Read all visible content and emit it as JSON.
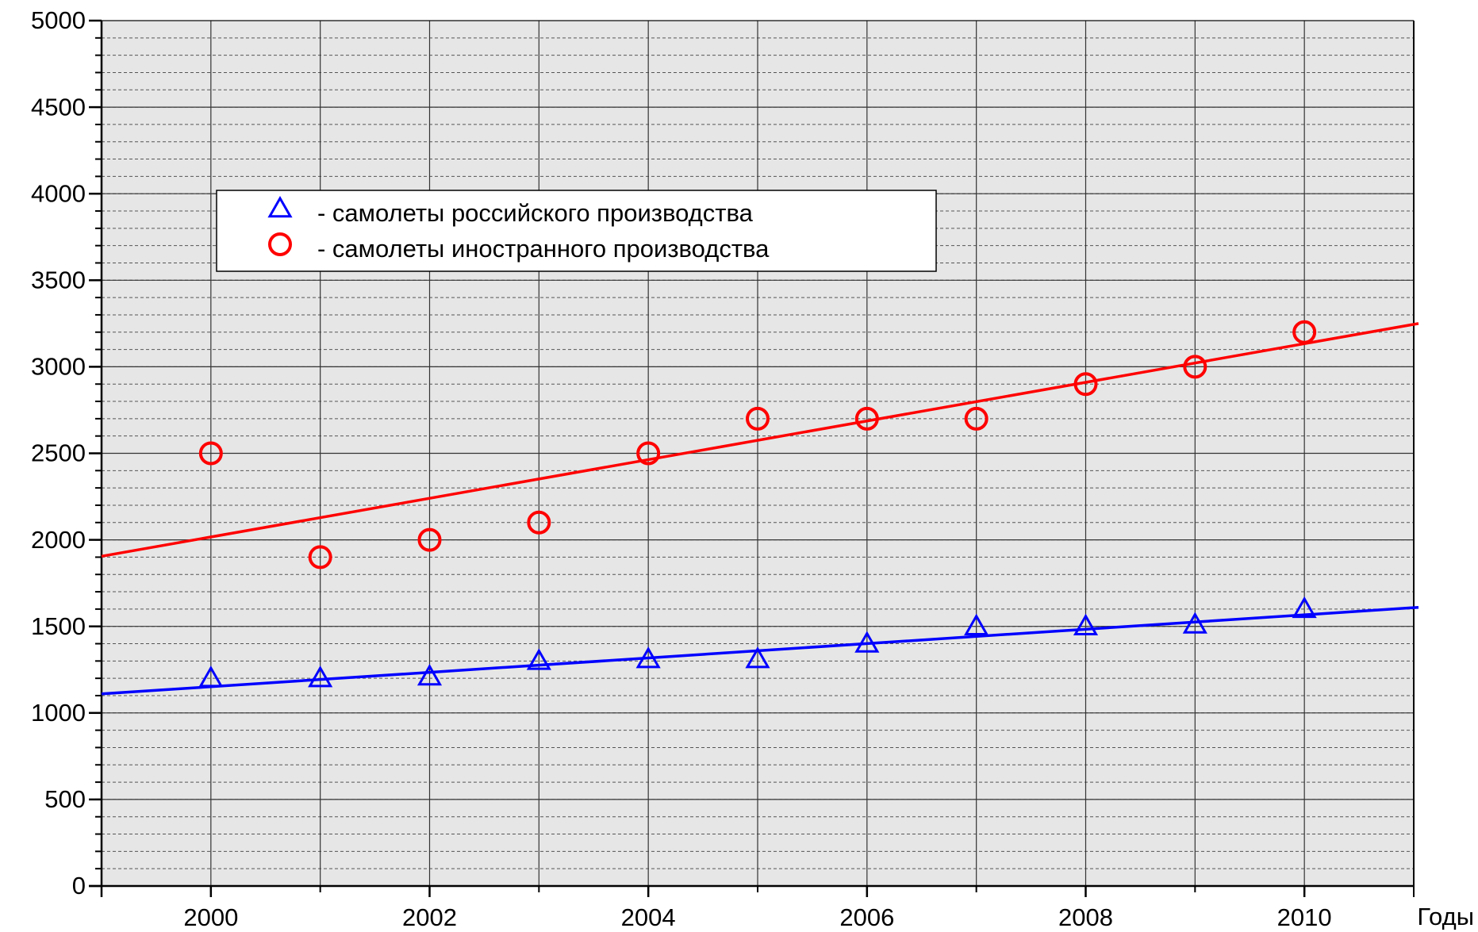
{
  "chart_data": {
    "type": "scatter",
    "x_label": "Годы",
    "x": [
      2000,
      2001,
      2002,
      2003,
      2004,
      2005,
      2006,
      2007,
      2008,
      2009,
      2010
    ],
    "series": [
      {
        "name": "- самолеты российского производства",
        "color": "#0000ff",
        "marker": "triangle",
        "values": [
          1200,
          1200,
          1210,
          1300,
          1310,
          1310,
          1400,
          1500,
          1500,
          1510,
          1600
        ],
        "trend": {
          "x": [
            1999,
            2011
          ],
          "values": [
            1110,
            1610
          ]
        }
      },
      {
        "name": "- самолеты иностранного производства",
        "color": "#ff0000",
        "marker": "circle",
        "values": [
          2500,
          1900,
          2000,
          2100,
          2500,
          2700,
          2700,
          2700,
          2900,
          3000,
          3200
        ],
        "trend": {
          "x": [
            1999,
            2011
          ],
          "values": [
            1905,
            3250
          ]
        }
      }
    ],
    "xlim": [
      1999,
      2011
    ],
    "xticks": [
      2000,
      2002,
      2004,
      2006,
      2008,
      2010
    ],
    "xminor_step": 1,
    "ylim": [
      0,
      5000
    ],
    "yticks": [
      0,
      500,
      1000,
      1500,
      2000,
      2500,
      3000,
      3500,
      4000,
      4500,
      5000
    ],
    "yminor_step": 100,
    "grid": true,
    "legend": "upper left"
  }
}
